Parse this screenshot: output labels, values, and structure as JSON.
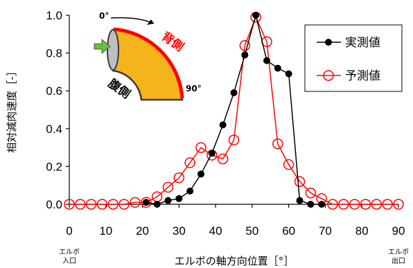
{
  "chart_data": {
    "type": "line",
    "xlabel": "エルボの軸方向位置［°］",
    "ylabel": "相対減肉速度［-］",
    "xlim": [
      0,
      90
    ],
    "ylim": [
      0,
      1.0
    ],
    "x_ticks": [
      "0",
      "10",
      "20",
      "30",
      "40",
      "50",
      "60",
      "70",
      "80",
      "90"
    ],
    "y_ticks": [
      "0.0",
      "0.2",
      "0.4",
      "0.6",
      "0.8",
      "1.0"
    ],
    "x_end_labels": {
      "start": [
        "エルボ",
        "入口"
      ],
      "end": [
        "エルボ",
        "出口"
      ]
    },
    "grid": false,
    "legend_position": "top-right",
    "series": [
      {
        "name": "実測値",
        "color": "#000000",
        "marker": "filled-circle",
        "x": [
          21,
          24,
          27,
          30,
          33,
          36,
          39,
          42,
          45,
          48,
          51,
          54,
          57,
          60,
          63,
          66,
          69
        ],
        "y": [
          0.01,
          0.0,
          0.02,
          0.03,
          0.07,
          0.16,
          0.27,
          0.42,
          0.59,
          0.79,
          1.0,
          0.76,
          0.72,
          0.69,
          0.02,
          0.0,
          0.0
        ]
      },
      {
        "name": "予測値",
        "color": "#ff0000",
        "marker": "open-circle",
        "x": [
          0,
          3,
          6,
          9,
          12,
          15,
          18,
          21,
          24,
          27,
          30,
          33,
          36,
          39,
          42,
          45,
          48,
          51,
          54,
          57,
          60,
          63,
          66,
          69,
          72,
          75,
          78,
          81,
          84,
          87,
          90
        ],
        "y": [
          0,
          0,
          0,
          0,
          0,
          0,
          0.01,
          0.01,
          0.04,
          0.09,
          0.14,
          0.22,
          0.3,
          0.26,
          0.24,
          0.34,
          0.84,
          0.99,
          0.86,
          0.32,
          0.21,
          0.12,
          0.06,
          0.03,
          0,
          0,
          0,
          0,
          0,
          0,
          0
        ]
      }
    ],
    "annotations": {
      "elbow_start": "0°",
      "elbow_end": "90°",
      "outer_side": "背側",
      "inner_side": "腹側"
    }
  },
  "colors": {
    "axis": "#000000",
    "measured": "#000000",
    "predicted": "#ff0000",
    "elbow_fill": "#f5b31c",
    "elbow_outline": "#3a3a3a",
    "elbow_back": "#ff0000",
    "inlet_face": "#bfbfbf",
    "flow_arrow": "#6bbf3a"
  }
}
